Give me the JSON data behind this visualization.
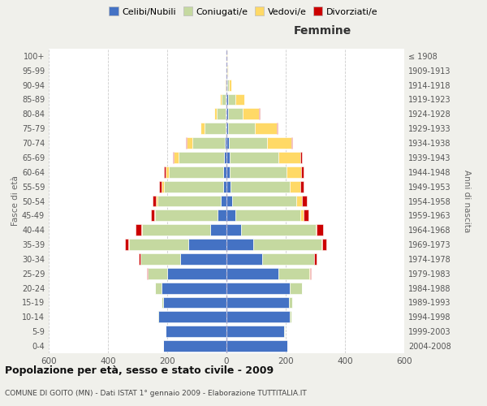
{
  "age_groups": [
    "0-4",
    "5-9",
    "10-14",
    "15-19",
    "20-24",
    "25-29",
    "30-34",
    "35-39",
    "40-44",
    "45-49",
    "50-54",
    "55-59",
    "60-64",
    "65-69",
    "70-74",
    "75-79",
    "80-84",
    "85-89",
    "90-94",
    "95-99",
    "100+"
  ],
  "birth_years": [
    "2004-2008",
    "1999-2003",
    "1994-1998",
    "1989-1993",
    "1984-1988",
    "1979-1983",
    "1974-1978",
    "1969-1973",
    "1964-1968",
    "1959-1963",
    "1954-1958",
    "1949-1953",
    "1944-1948",
    "1939-1943",
    "1934-1938",
    "1929-1933",
    "1924-1928",
    "1919-1923",
    "1914-1918",
    "1909-1913",
    "≤ 1908"
  ],
  "male": {
    "celibe": [
      215,
      205,
      230,
      215,
      220,
      200,
      155,
      130,
      55,
      30,
      18,
      12,
      10,
      8,
      5,
      3,
      2,
      2,
      0,
      0,
      0
    ],
    "coniugato": [
      0,
      0,
      2,
      5,
      20,
      65,
      135,
      200,
      230,
      210,
      215,
      200,
      185,
      155,
      110,
      70,
      30,
      15,
      3,
      1,
      0
    ],
    "vedovo": [
      0,
      0,
      0,
      0,
      0,
      0,
      1,
      2,
      2,
      3,
      5,
      8,
      10,
      15,
      20,
      15,
      10,
      5,
      2,
      0,
      0
    ],
    "divorziato": [
      0,
      0,
      0,
      0,
      1,
      3,
      5,
      10,
      20,
      12,
      10,
      8,
      5,
      3,
      2,
      0,
      0,
      0,
      0,
      0,
      0
    ]
  },
  "female": {
    "nubile": [
      205,
      195,
      215,
      210,
      215,
      175,
      120,
      90,
      50,
      30,
      20,
      15,
      12,
      10,
      8,
      5,
      5,
      5,
      2,
      1,
      0
    ],
    "coniugata": [
      0,
      1,
      3,
      12,
      40,
      105,
      175,
      230,
      250,
      220,
      215,
      200,
      190,
      165,
      130,
      90,
      50,
      25,
      5,
      2,
      1
    ],
    "vedova": [
      0,
      0,
      0,
      0,
      0,
      1,
      2,
      3,
      5,
      10,
      20,
      35,
      50,
      75,
      80,
      75,
      55,
      30,
      10,
      3,
      1
    ],
    "divorziata": [
      0,
      0,
      0,
      0,
      1,
      3,
      8,
      15,
      22,
      18,
      15,
      10,
      8,
      5,
      5,
      2,
      2,
      1,
      0,
      0,
      0
    ]
  },
  "colors": {
    "celibe": "#4472C4",
    "coniugato": "#c5d9a0",
    "vedovo": "#FFD966",
    "divorziato": "#CC0000"
  },
  "title": "Popolazione per età, sesso e stato civile - 2009",
  "subtitle": "COMUNE DI GOITO (MN) - Dati ISTAT 1° gennaio 2009 - Elaborazione TUTTITALIA.IT",
  "xlabel_right": "Femmine",
  "ylabel_left": "Fasce di età",
  "ylabel_right": "Anni di nascita",
  "xlim": 600,
  "legend_labels": [
    "Celibi/Nubili",
    "Coniugati/e",
    "Vedovi/e",
    "Divorziati/e"
  ],
  "background_color": "#f0f0eb",
  "plot_bg": "#ffffff"
}
